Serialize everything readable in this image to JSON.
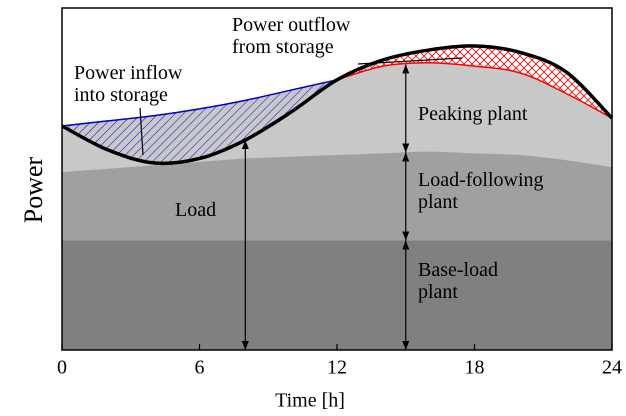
{
  "chart_data": {
    "type": "area",
    "xlabel": "Time [h]",
    "ylabel": "Power",
    "x": [
      0,
      2,
      4,
      6,
      8,
      10,
      12,
      14,
      16,
      18,
      20,
      22,
      24
    ],
    "xlim": [
      0,
      24
    ],
    "xticks": [
      0,
      6,
      12,
      18,
      24
    ],
    "ylim": [
      0,
      100
    ],
    "series": [
      {
        "name": "Peaking plant",
        "color": "#c8c8c8",
        "values": [
          65.5,
          67,
          68.5,
          70.5,
          73,
          76,
          79,
          83,
          84,
          83,
          81,
          75,
          67.8
        ]
      },
      {
        "name": "Load-following plant",
        "color": "#a0a0a0",
        "values": [
          52,
          53,
          54,
          55,
          56,
          56.5,
          57,
          57.5,
          58,
          57.5,
          57,
          55.5,
          53.5
        ]
      },
      {
        "name": "Base-load plant",
        "color": "#808080",
        "values": [
          32,
          32,
          32,
          32,
          32,
          32,
          32,
          32,
          32,
          32,
          32,
          32,
          32
        ]
      }
    ],
    "load": {
      "name": "Load",
      "color": "#000000",
      "values": [
        65.5,
        58.5,
        54.7,
        56,
        61.4,
        69.6,
        79,
        84.8,
        87.7,
        88.9,
        87,
        81.3,
        67.8
      ]
    },
    "inflow": {
      "text": "Power inflow into storage",
      "color": "#0000cc"
    },
    "outflow": {
      "text": "Power outflow from storage",
      "color": "#ff0000"
    }
  }
}
